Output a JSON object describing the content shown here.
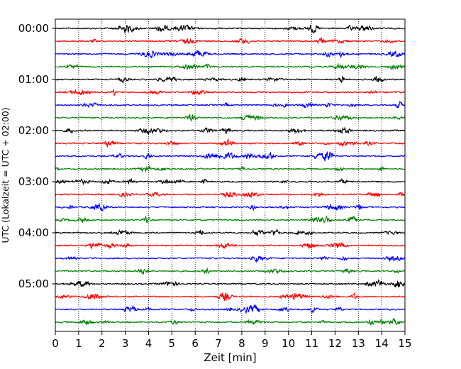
{
  "chart_data": {
    "type": "line",
    "title": "",
    "xlabel": "Zeit  [min]",
    "ylabel": "UTC (Lokalzeit = UTC + 02:00)",
    "xlim": [
      0,
      15
    ],
    "x_ticks": [
      "0",
      "1",
      "2",
      "3",
      "4",
      "5",
      "6",
      "7",
      "8",
      "9",
      "10",
      "11",
      "12",
      "13",
      "14",
      "15"
    ],
    "y_tick_labels": [
      "00:00",
      "01:00",
      "02:00",
      "03:00",
      "04:00",
      "05:00"
    ],
    "rows_per_hour": 4,
    "row_count": 24,
    "row_interval_min": 15,
    "grid": "vertical dotted lines at every minute",
    "colors": [
      "#000000",
      "#ff0000",
      "#0000ff",
      "#008000"
    ],
    "legend": "none"
  }
}
